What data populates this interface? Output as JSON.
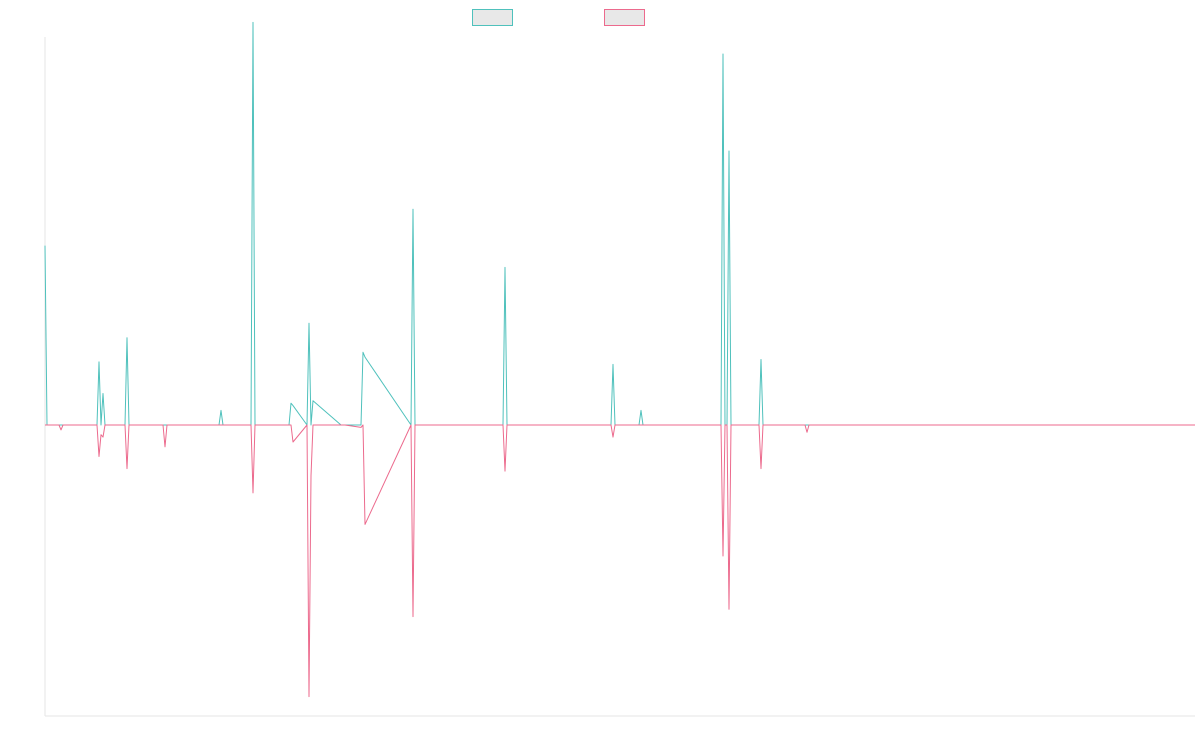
{
  "colors": {
    "series_a": "#4fc1bc",
    "series_b": "#ec6a8d",
    "legend_fill": "#e8e8e8",
    "axis": "#e6e6e6"
  },
  "chart_data": {
    "type": "line",
    "title": "",
    "xlabel": "",
    "ylabel": "",
    "grid": false,
    "legend_placement": "top-center",
    "xlim": [
      0,
      1150
    ],
    "ylim": [
      -6,
      8
    ],
    "x": [
      0,
      2,
      14,
      16,
      18,
      52,
      54,
      56,
      58,
      60,
      62,
      64,
      66,
      80,
      82,
      84,
      118,
      120,
      122,
      156,
      158,
      160,
      174,
      176,
      178,
      206,
      208,
      210,
      212,
      244,
      246,
      248,
      262,
      264,
      266,
      268,
      296,
      298,
      300,
      316,
      318,
      320,
      366,
      368,
      370,
      458,
      460,
      462,
      566,
      568,
      570,
      594,
      596,
      598,
      676,
      678,
      680,
      682,
      684,
      686,
      688,
      714,
      716,
      718,
      760,
      762,
      764,
      1150
    ],
    "series": [
      {
        "name": "",
        "color_key": "series_a",
        "values": [
          3.7,
          0,
          0,
          0,
          0,
          0,
          1.3,
          0,
          0.65,
          0,
          0,
          0,
          0,
          0,
          1.8,
          0,
          0,
          0,
          0,
          0,
          0,
          0,
          0,
          0.3,
          0,
          0,
          8.3,
          0,
          0,
          0,
          0.45,
          0.4,
          0,
          2.1,
          0,
          0.5,
          0,
          0,
          0,
          0,
          1.5,
          1.4,
          0,
          4.45,
          0,
          0,
          3.25,
          0,
          0,
          1.25,
          0,
          0,
          0.3,
          0,
          0,
          7.65,
          0,
          0,
          5.65,
          0,
          0,
          0,
          1.35,
          0,
          0,
          0,
          0,
          0
        ]
      },
      {
        "name": "",
        "color_key": "series_b",
        "values": [
          0,
          0,
          0,
          -0.1,
          0,
          0,
          -0.65,
          -0.2,
          -0.25,
          0,
          0,
          0,
          0,
          0,
          -0.9,
          0,
          0,
          -0.45,
          0,
          0,
          0,
          0,
          0,
          0,
          0,
          0,
          -1.4,
          0,
          0,
          0,
          0,
          -0.35,
          0,
          -5.6,
          -1.05,
          0,
          0,
          0,
          0,
          -0.05,
          0,
          -2.05,
          0,
          -3.95,
          0,
          0,
          -0.95,
          0,
          0,
          -0.25,
          0,
          0,
          0,
          0,
          0,
          -2.7,
          0,
          0,
          -3.8,
          0,
          0,
          0,
          -0.9,
          0,
          0,
          -0.15,
          0,
          0
        ]
      }
    ]
  }
}
